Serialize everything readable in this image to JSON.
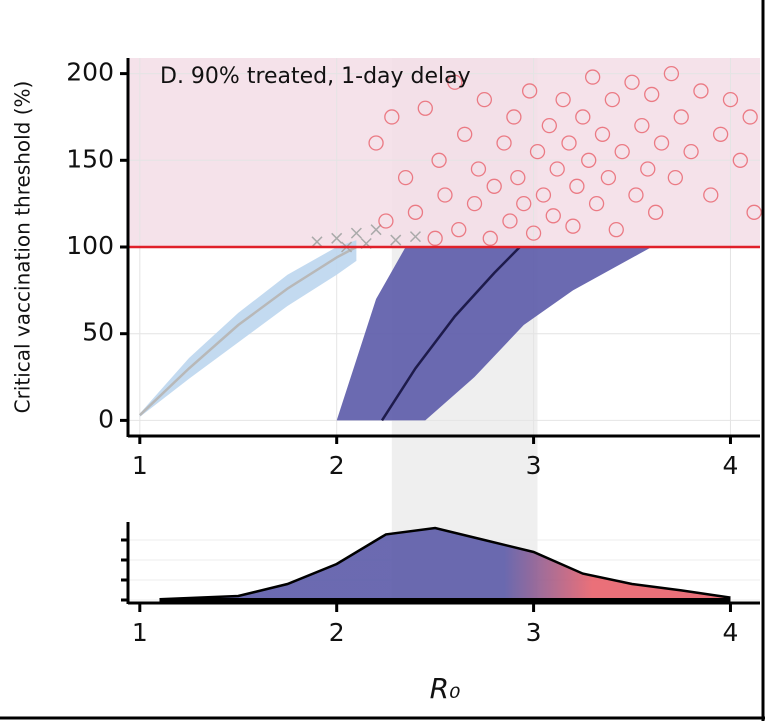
{
  "chart_data": [
    {
      "type": "composite",
      "title": "D. 90% treated, 1-day delay",
      "y_label": "Critical vaccination threshold (%)",
      "xlim": [
        0.94,
        4.15
      ],
      "ylim": [
        -9,
        209
      ],
      "xticks": [
        1,
        2,
        3,
        4
      ],
      "yticks": [
        0,
        50,
        100,
        150,
        200
      ],
      "grid": true,
      "hline": 100,
      "hline_color": "#e0202a",
      "region_color": "#f3dde6",
      "highlight_range": [
        2.28,
        3.02
      ],
      "highlight_color": "#efefef",
      "series": [
        {
          "kind": "band",
          "color": "#bcd6ee",
          "x": [
            1,
            1.25,
            1.5,
            1.75,
            2,
            2.1
          ],
          "lower": [
            2,
            24,
            45,
            66,
            84,
            92
          ],
          "upper": [
            4,
            36,
            62,
            84,
            100,
            104
          ]
        },
        {
          "kind": "line",
          "color": "#b8b8b8",
          "x": [
            1,
            1.25,
            1.5,
            1.75,
            2,
            2.1
          ],
          "values": [
            3,
            30,
            55,
            76,
            94,
            100
          ]
        },
        {
          "kind": "band",
          "color": "#5b5aa8",
          "x": [
            2.0,
            2.1,
            2.2,
            2.35,
            2.45,
            2.7,
            2.95,
            3.2,
            3.6
          ],
          "lower": [
            0,
            0,
            0,
            0,
            0,
            25,
            55,
            75,
            100
          ],
          "upper": [
            0,
            35,
            70,
            100,
            100,
            100,
            100,
            100,
            100
          ]
        },
        {
          "kind": "line",
          "color": "#1e1b4b",
          "x": [
            2.23,
            2.4,
            2.6,
            2.8,
            2.93
          ],
          "values": [
            0,
            30,
            60,
            85,
            100
          ]
        },
        {
          "kind": "cross",
          "color": "#aaaaaa",
          "x": [
            1.9,
            2.0,
            2.05,
            2.1,
            2.15,
            2.2,
            2.3,
            2.4
          ],
          "values": [
            103,
            105,
            100,
            108,
            102,
            110,
            104,
            106
          ]
        },
        {
          "kind": "circle",
          "color": "#e8606a",
          "x": [
            2.2,
            2.25,
            2.28,
            2.35,
            2.4,
            2.45,
            2.5,
            2.52,
            2.55,
            2.6,
            2.62,
            2.65,
            2.7,
            2.72,
            2.75,
            2.78,
            2.8,
            2.85,
            2.88,
            2.9,
            2.92,
            2.95,
            2.98,
            3.0,
            3.02,
            3.05,
            3.08,
            3.1,
            3.12,
            3.15,
            3.18,
            3.2,
            3.22,
            3.25,
            3.28,
            3.3,
            3.32,
            3.35,
            3.38,
            3.4,
            3.42,
            3.45,
            3.5,
            3.52,
            3.55,
            3.58,
            3.6,
            3.62,
            3.65,
            3.7,
            3.72,
            3.75,
            3.8,
            3.85,
            3.9,
            3.95,
            4.0,
            4.05,
            4.1,
            4.12
          ],
          "values": [
            160,
            115,
            175,
            140,
            120,
            180,
            105,
            150,
            130,
            195,
            110,
            165,
            125,
            145,
            185,
            105,
            135,
            160,
            115,
            175,
            140,
            125,
            190,
            108,
            155,
            130,
            170,
            118,
            145,
            185,
            160,
            112,
            135,
            175,
            150,
            198,
            125,
            165,
            140,
            185,
            110,
            155,
            195,
            130,
            170,
            145,
            188,
            120,
            160,
            200,
            140,
            175,
            155,
            190,
            130,
            165,
            185,
            150,
            175,
            120
          ]
        }
      ]
    },
    {
      "type": "area",
      "x_label": "R₀",
      "xlim": [
        0.94,
        4.15
      ],
      "ylim": [
        0,
        1
      ],
      "xticks": [
        1,
        2,
        3,
        4
      ],
      "yticks": [
        0,
        0.25,
        0.5,
        0.75
      ],
      "x": [
        1.1,
        1.5,
        1.75,
        2,
        2.25,
        2.5,
        2.75,
        3,
        3.25,
        3.5,
        3.75,
        4
      ],
      "values": [
        0.01,
        0.05,
        0.2,
        0.45,
        0.82,
        0.9,
        0.75,
        0.6,
        0.33,
        0.2,
        0.12,
        0.03
      ],
      "color": "#5b5aa8",
      "color2": "#e8606a",
      "gradient_range": [
        2.85,
        3.3
      ]
    }
  ]
}
